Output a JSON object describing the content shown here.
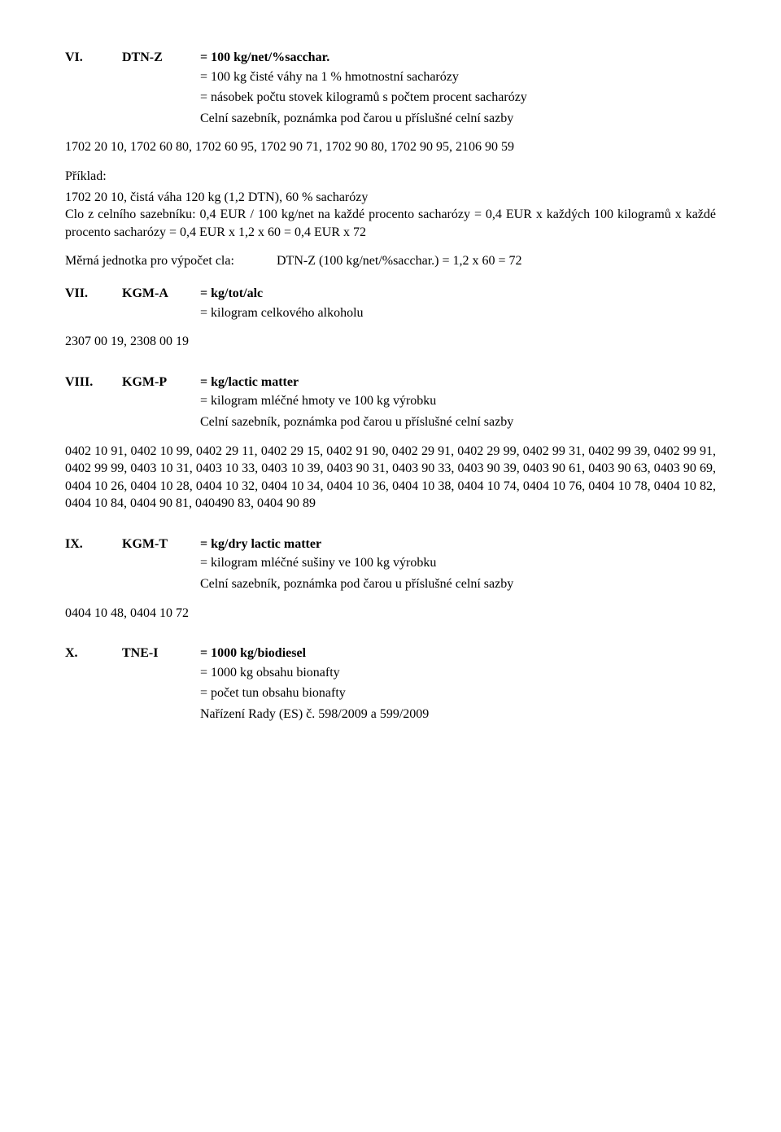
{
  "sections": {
    "vi": {
      "roman": "VI.",
      "code": "DTN-Z",
      "eq": "= 100 kg/net/%sacchar.",
      "def1": "= 100 kg čisté váhy na 1 % hmotnostní sacharózy",
      "def2": "= násobek počtu stovek kilogramů s počtem procent sacharózy",
      "def3": "Celní sazebník, poznámka pod čarou u příslušné celní sazby",
      "codes": "1702 20 10, 1702 60 80, 1702 60 95, 1702 90 71, 1702 90 80, 1702 90 95, 2106 90 59",
      "priklad_label": "Příklad:",
      "priklad_text": "1702 20 10, čistá váha 120 kg (1,2 DTN), 60 % sacharózy\nClo z celního sazebníku: 0,4 EUR / 100 kg/net na každé procento sacharózy = 0,4 EUR x každých 100 kilogramů x každé procento sacharózy = 0,4 EUR x 1,2 x 60 = 0,4 EUR x 72",
      "mj_left": "Měrná jednotka pro výpočet cla:",
      "mj_right": "DTN-Z (100 kg/net/%sacchar.) = 1,2 x 60 = 72"
    },
    "vii": {
      "roman": "VII.",
      "code": "KGM-A",
      "eq": "= kg/tot/alc",
      "def1": "= kilogram celkového alkoholu",
      "codes": "2307 00 19, 2308 00 19"
    },
    "viii": {
      "roman": "VIII.",
      "code": "KGM-P",
      "eq": "= kg/lactic matter",
      "def1": "= kilogram mléčné hmoty ve 100 kg výrobku",
      "def2": "Celní sazebník, poznámka pod čarou u příslušné celní sazby",
      "codes": "0402 10 91, 0402 10 99, 0402 29 11, 0402 29 15, 0402 91 90, 0402 29 91, 0402 29 99, 0402 99 31, 0402 99 39, 0402 99 91, 0402 99 99, 0403 10 31, 0403 10 33, 0403 10 39, 0403 90 31, 0403 90 33, 0403 90 39, 0403 90 61, 0403 90 63, 0403 90 69, 0404 10 26, 0404 10 28, 0404 10 32, 0404 10 34, 0404 10 36, 0404 10 38, 0404 10 74, 0404 10 76, 0404 10 78, 0404 10 82, 0404 10 84, 0404 90 81, 040490 83, 0404 90 89"
    },
    "ix": {
      "roman": "IX.",
      "code": "KGM-T",
      "eq": "= kg/dry lactic matter",
      "def1": "= kilogram mléčné sušiny ve 100 kg výrobku",
      "def2": "Celní sazebník, poznámka pod čarou u příslušné celní sazby",
      "codes": "0404 10 48, 0404 10 72"
    },
    "x": {
      "roman": "X.",
      "code": "TNE-I",
      "eq": "= 1000 kg/biodiesel",
      "def1": "= 1000 kg obsahu bionafty",
      "def2": "= počet tun obsahu bionafty",
      "def3": "Nařízení Rady (ES) č. 598/2009 a 599/2009"
    }
  }
}
